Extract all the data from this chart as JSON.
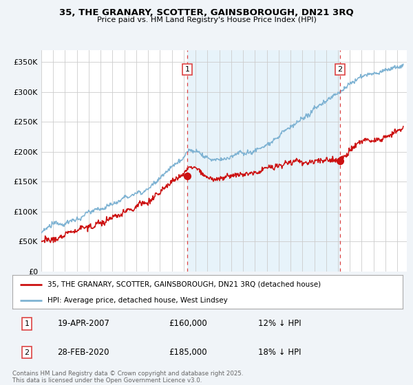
{
  "title_line1": "35, THE GRANARY, SCOTTER, GAINSBOROUGH, DN21 3RQ",
  "title_line2": "Price paid vs. HM Land Registry's House Price Index (HPI)",
  "ylabel_ticks": [
    "£0",
    "£50K",
    "£100K",
    "£150K",
    "£200K",
    "£250K",
    "£300K",
    "£350K"
  ],
  "ytick_values": [
    0,
    50000,
    100000,
    150000,
    200000,
    250000,
    300000,
    350000
  ],
  "ylim": [
    0,
    370000
  ],
  "xlim_start": 1995.0,
  "xlim_end": 2025.8,
  "sale1_x": 2007.3,
  "sale1_y": 160000,
  "sale1_label": "1",
  "sale2_x": 2020.17,
  "sale2_y": 185000,
  "sale2_label": "2",
  "vline_color": "#dd4444",
  "vline_style": "--",
  "hpi_color": "#7fb3d3",
  "hpi_fill_color": "#ddeeff",
  "price_color": "#cc1111",
  "legend_entry1": "35, THE GRANARY, SCOTTER, GAINSBOROUGH, DN21 3RQ (detached house)",
  "legend_entry2": "HPI: Average price, detached house, West Lindsey",
  "table_row1": [
    "1",
    "19-APR-2007",
    "£160,000",
    "12% ↓ HPI"
  ],
  "table_row2": [
    "2",
    "28-FEB-2020",
    "£185,000",
    "18% ↓ HPI"
  ],
  "footer": "Contains HM Land Registry data © Crown copyright and database right 2025.\nThis data is licensed under the Open Government Licence v3.0.",
  "bg_color": "#f0f4f8",
  "plot_bg_color": "#ffffff",
  "grid_color": "#cccccc",
  "shade_color": "#ddeef8"
}
